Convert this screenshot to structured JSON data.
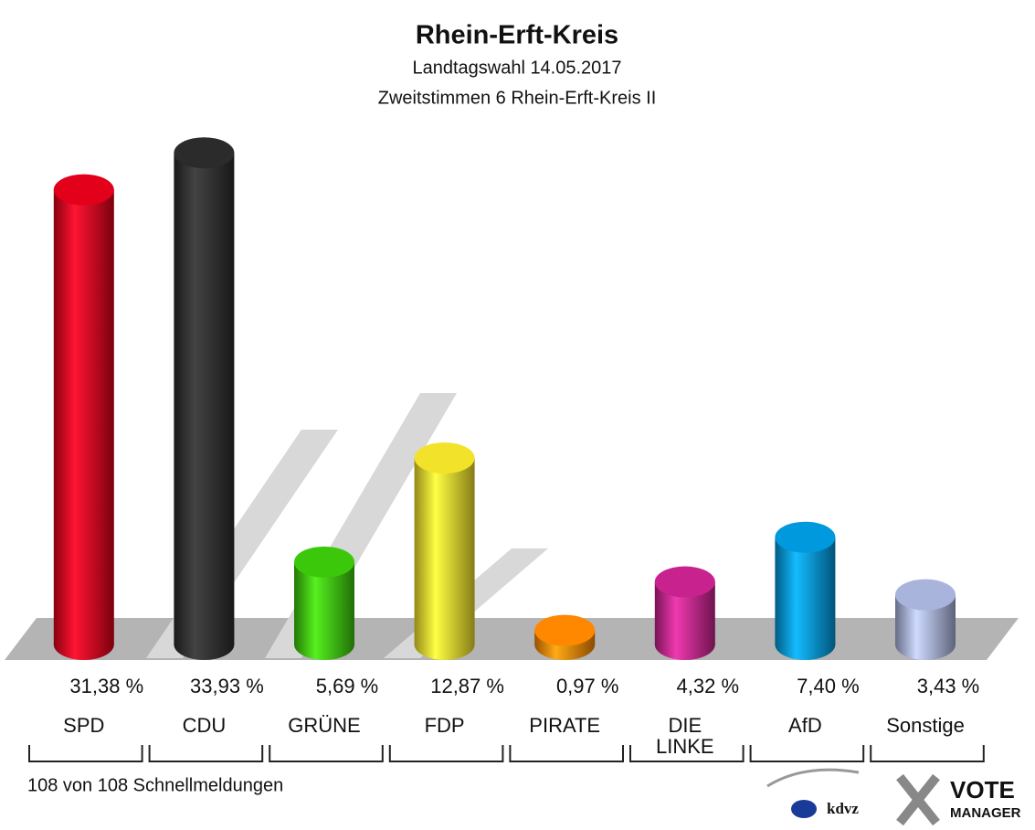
{
  "chart_data": {
    "type": "bar",
    "title": "Rhein-Erft-Kreis",
    "subtitle": [
      "Landtagswahl 14.05.2017",
      "Zweitstimmen 6 Rhein-Erft-Kreis II"
    ],
    "categories": [
      "SPD",
      "CDU",
      "GRÜNE",
      "FDP",
      "PIRATE",
      "DIE\nLINKE",
      "AfD",
      "Sonstige"
    ],
    "values": [
      31.38,
      33.93,
      5.69,
      12.87,
      0.97,
      4.32,
      7.4,
      3.43
    ],
    "value_labels": [
      "31,38 %",
      "33,93 %",
      "5,69 %",
      "12,87 %",
      "0,97 %",
      "4,32 %",
      "7,40 %",
      "3,43 %"
    ],
    "colors": [
      "#e2001a",
      "#2b2b2b",
      "#3cc80a",
      "#f3e22a",
      "#ff8800",
      "#c8228e",
      "#0099dd",
      "#a9b4dd"
    ],
    "footer": "108 von 108 Schnellmeldungen",
    "logo": [
      "kdvz",
      "VOTE",
      "MANAGER"
    ]
  }
}
